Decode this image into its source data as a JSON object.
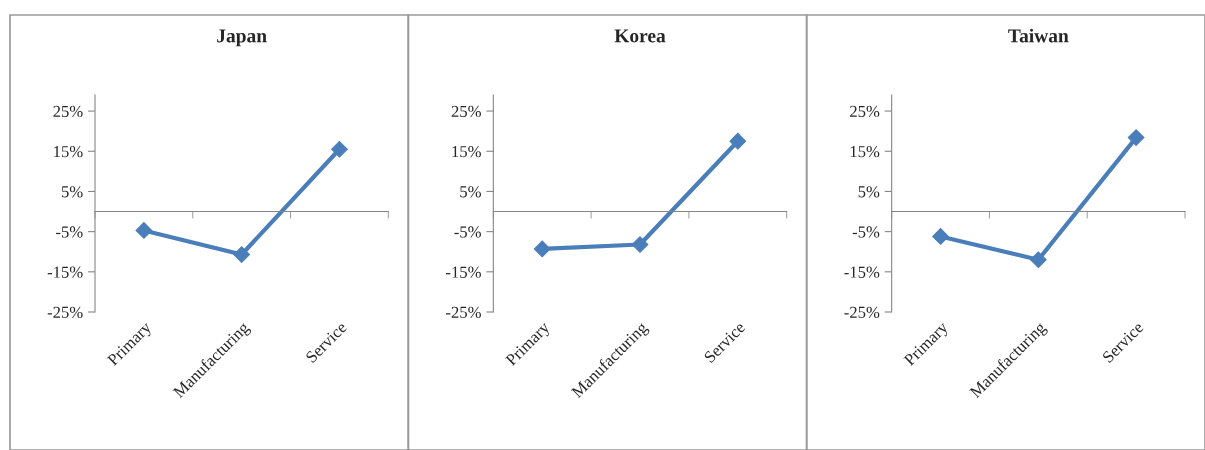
{
  "chart_data": [
    {
      "type": "line",
      "title": "Japan",
      "categories": [
        "Primary",
        "Manufacturing",
        "Service"
      ],
      "series": [
        {
          "color": "#4a7ebb",
          "values": [
            -4.7,
            -10.7,
            15.5
          ]
        }
      ],
      "ylim": [
        -25,
        29
      ],
      "yticks": [
        {
          "value": -25,
          "label": "-25%"
        },
        {
          "value": -15,
          "label": "-15%"
        },
        {
          "value": -5,
          "label": "-5%"
        },
        {
          "value": 5,
          "label": "5%"
        },
        {
          "value": 15,
          "label": "15%"
        },
        {
          "value": 25,
          "label": "25%"
        }
      ],
      "marker": "diamond",
      "line_style": "solid",
      "grid": false
    },
    {
      "type": "line",
      "title": "Korea",
      "categories": [
        "Primary",
        "Manufacturing",
        "Service"
      ],
      "series": [
        {
          "color": "#4a7ebb",
          "values": [
            -9.3,
            -8.2,
            17.5
          ]
        }
      ],
      "ylim": [
        -25,
        29
      ],
      "yticks": [
        {
          "value": -25,
          "label": "-25%"
        },
        {
          "value": -15,
          "label": "-15%"
        },
        {
          "value": -5,
          "label": "-5%"
        },
        {
          "value": 5,
          "label": "5%"
        },
        {
          "value": 15,
          "label": "15%"
        },
        {
          "value": 25,
          "label": "25%"
        }
      ],
      "marker": "diamond",
      "line_style": "solid",
      "grid": false
    },
    {
      "type": "line",
      "title": "Taiwan",
      "categories": [
        "Primary",
        "Manufacturing",
        "Service"
      ],
      "series": [
        {
          "color": "#4a7ebb",
          "values": [
            -6.2,
            -12.0,
            18.4
          ]
        }
      ],
      "ylim": [
        -25,
        29
      ],
      "yticks": [
        {
          "value": -25,
          "label": "-25%"
        },
        {
          "value": -15,
          "label": "-15%"
        },
        {
          "value": -5,
          "label": "-5%"
        },
        {
          "value": 5,
          "label": "5%"
        },
        {
          "value": 15,
          "label": "15%"
        },
        {
          "value": 25,
          "label": "25%"
        }
      ],
      "marker": "diamond",
      "line_style": "solid",
      "grid": false
    }
  ]
}
